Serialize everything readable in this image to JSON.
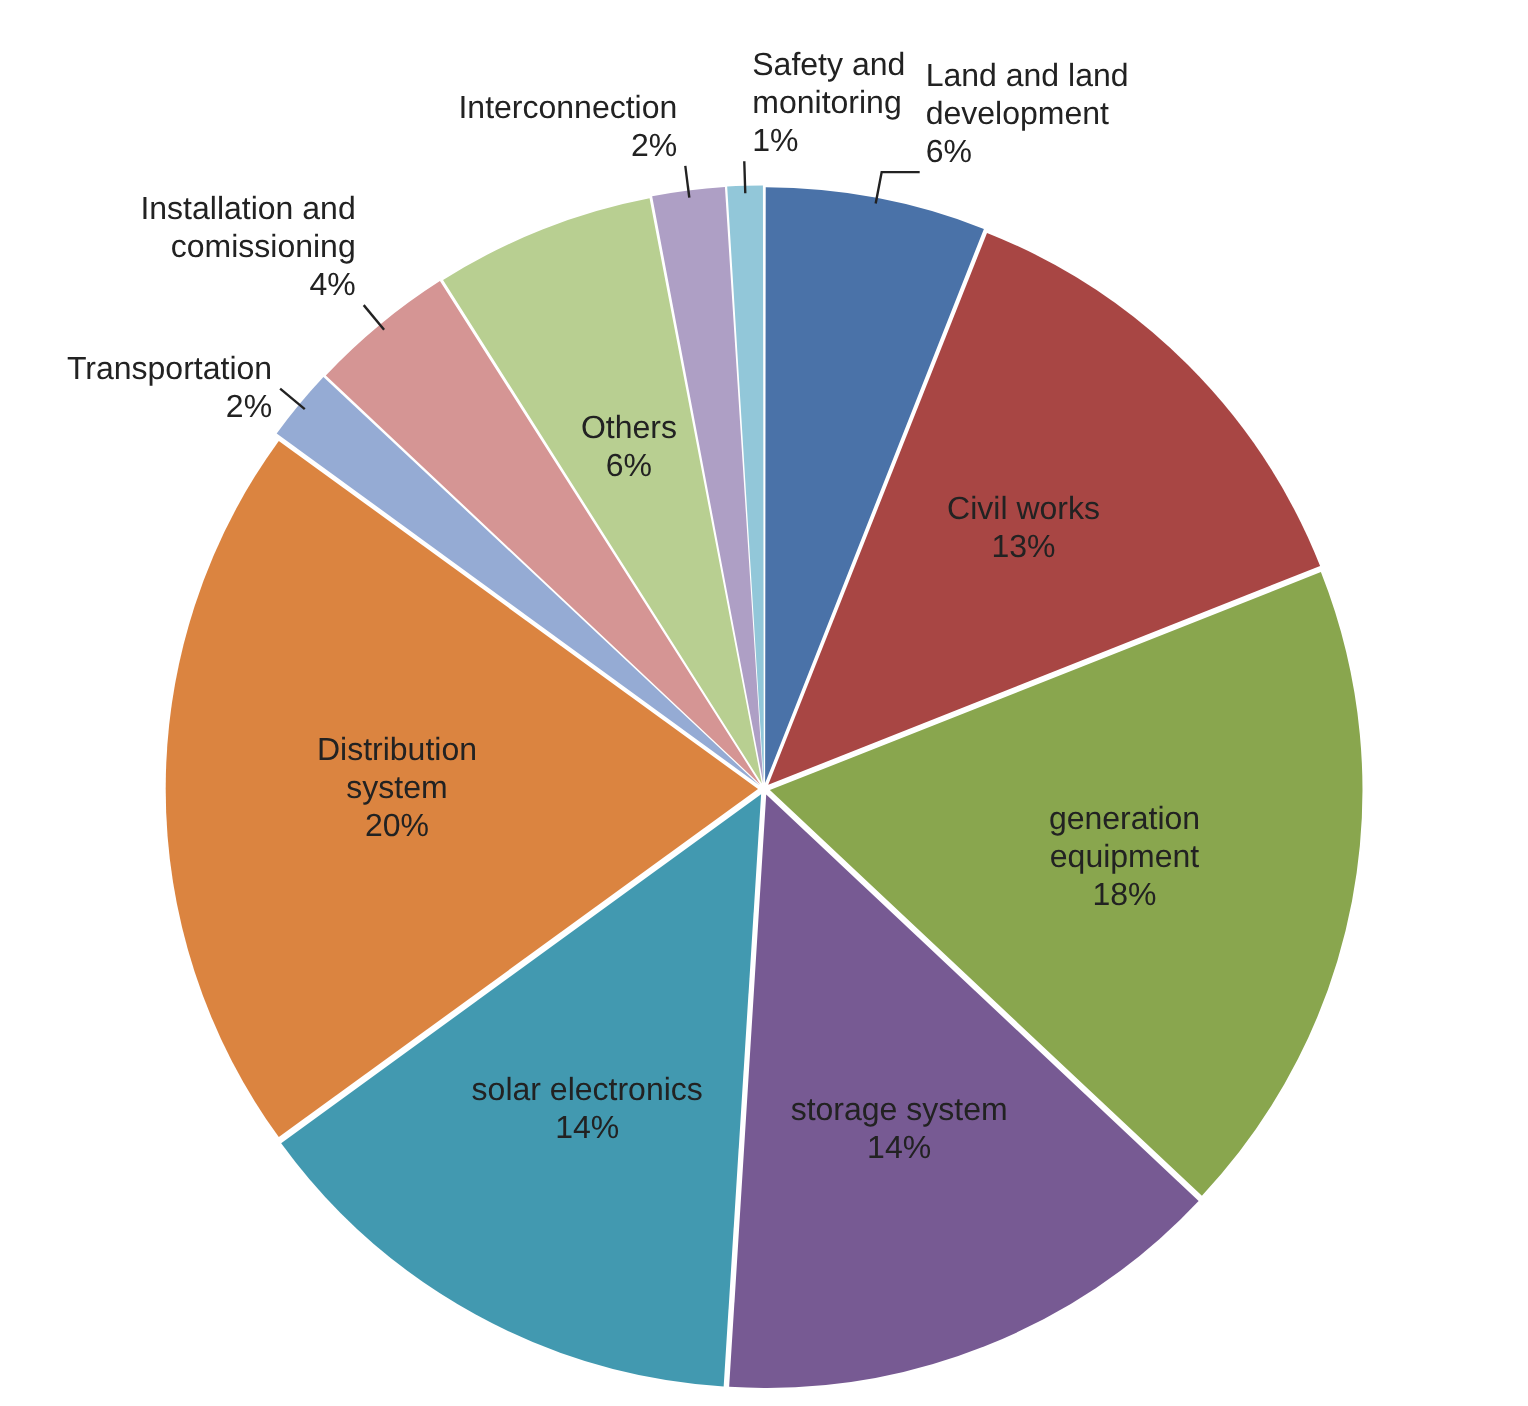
{
  "chart_data": {
    "type": "pie",
    "categories": [
      "Land and land development",
      "Civil works",
      "generation equipment",
      "storage system",
      "solar electronics",
      "Distribution system",
      "Transportation",
      "Installation and comissioning",
      "Others",
      "Interconnection",
      "Safety and monitoring"
    ],
    "values": [
      6,
      13,
      18,
      14,
      14,
      20,
      2,
      4,
      6,
      2,
      1
    ],
    "value_labels": [
      "6%",
      "13%",
      "18%",
      "14%",
      "14%",
      "20%",
      "2%",
      "4%",
      "6%",
      "2%",
      "1%"
    ],
    "colors": [
      "#4a72a8",
      "#a84644",
      "#89a64e",
      "#775a93",
      "#4299b0",
      "#db8440",
      "#95abd4",
      "#d59594",
      "#b8cf91",
      "#ae9fc5",
      "#92c7d9"
    ],
    "legend": false
  }
}
